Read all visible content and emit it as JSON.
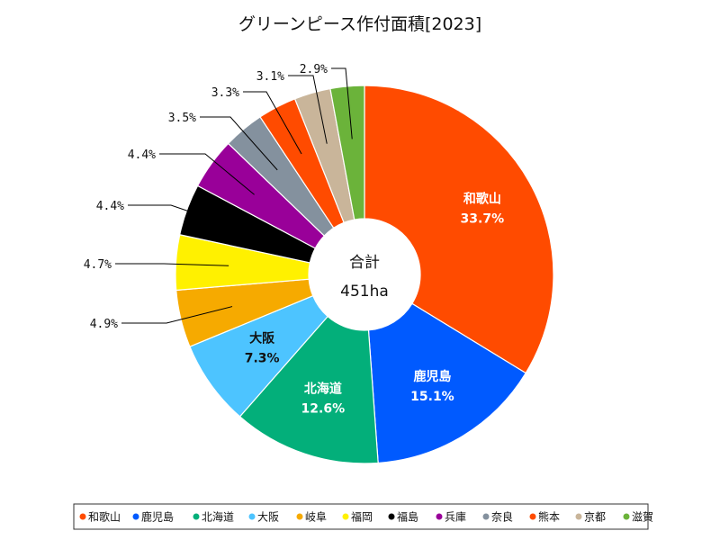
{
  "chart_data": {
    "type": "pie",
    "title": "グリーンピース作付面積[2023]",
    "center_label": "合計",
    "center_value": "451ha",
    "categories": [
      "和歌山",
      "鹿児島",
      "北海道",
      "大阪",
      "岐阜",
      "福岡",
      "福島",
      "兵庫",
      "奈良",
      "熊本",
      "京都",
      "滋賀"
    ],
    "values": [
      33.7,
      15.1,
      12.6,
      7.3,
      4.9,
      4.7,
      4.4,
      4.4,
      3.5,
      3.3,
      3.1,
      2.9
    ],
    "value_labels": [
      "33.7%",
      "15.1%",
      "12.6%",
      "7.3%",
      "4.9%",
      "4.7%",
      "4.4%",
      "4.4%",
      "3.5%",
      "3.3%",
      "3.1%",
      "2.9%"
    ],
    "colors": [
      "#FF4B00",
      "#005AFF",
      "#03AF7A",
      "#4DC4FF",
      "#F6AA00",
      "#FFF100",
      "#000000",
      "#990099",
      "#84919E",
      "#FF4B00",
      "#C9B59A",
      "#6BB33A"
    ],
    "legend_position": "bottom"
  }
}
